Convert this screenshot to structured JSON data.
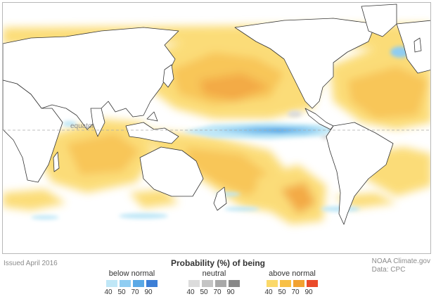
{
  "map": {
    "equator_label": "equator"
  },
  "footer": {
    "issued": "Issued April 2016",
    "credit_line1": "NOAA Climate.gov",
    "credit_line2": "Data: CPC"
  },
  "legend": {
    "title": "Probability (%) of being",
    "groups": [
      {
        "label": "below normal",
        "ticks": [
          "40",
          "50",
          "70",
          "90"
        ],
        "colors": [
          "#bfe7f7",
          "#8fcdf2",
          "#5aa9e6",
          "#3d7fd6"
        ]
      },
      {
        "label": "neutral",
        "ticks": [
          "40",
          "50",
          "70",
          "90"
        ],
        "colors": [
          "#dcdcdc",
          "#c4c4c4",
          "#a8a8a8",
          "#888888"
        ]
      },
      {
        "label": "above normal",
        "ticks": [
          "40",
          "50",
          "70",
          "90"
        ],
        "colors": [
          "#fbd96a",
          "#f8c046",
          "#f2a230",
          "#ea4b2a"
        ]
      }
    ]
  },
  "colors": {
    "land": "#ffffff",
    "ocean_base": "#ffffff",
    "coastline": "#333333",
    "equator_line": "#aaaaaa"
  }
}
